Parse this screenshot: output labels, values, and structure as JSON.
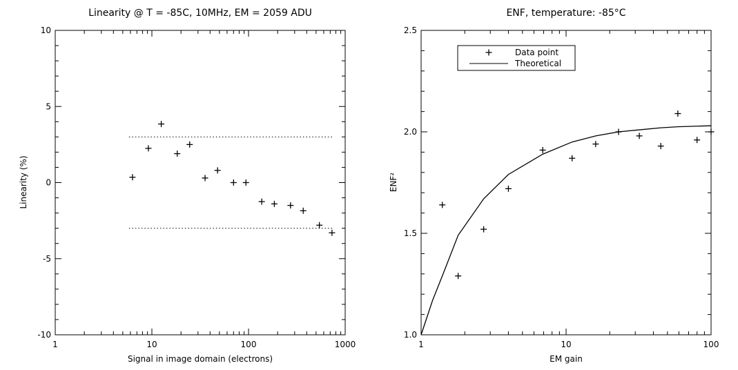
{
  "chart_data": [
    {
      "type": "scatter",
      "title": "Linearity @ T = -85C, 10MHz, EM = 2059 ADU",
      "xlabel": "Signal in image domain (electrons)",
      "ylabel": "Linearity (%)",
      "xscale": "log",
      "xlim": [
        1,
        1000
      ],
      "ylim": [
        -10,
        10
      ],
      "x_ticks": [
        1,
        10,
        100,
        1000
      ],
      "x_tick_labels": [
        "1",
        "10",
        "100",
        "1000"
      ],
      "y_ticks": [
        -10,
        -5,
        0,
        5,
        10
      ],
      "y_tick_labels": [
        "-10",
        "-5",
        "0",
        "5",
        "10"
      ],
      "reference_lines": [
        {
          "y": 3,
          "x_range": [
            5.8,
            760
          ],
          "style": "dotted"
        },
        {
          "y": -3,
          "x_range": [
            5.8,
            760
          ],
          "style": "dotted"
        }
      ],
      "series": [
        {
          "marker": "plus",
          "x": [
            6.3,
            9.2,
            12.5,
            18.3,
            24.6,
            35.5,
            47.8,
            70,
            94,
            137,
            185,
            272,
            368,
            541,
            730
          ],
          "y": [
            0.35,
            2.25,
            3.85,
            1.9,
            2.5,
            0.3,
            0.8,
            0.0,
            0.0,
            -1.25,
            -1.4,
            -1.5,
            -1.85,
            -2.8,
            -3.3
          ]
        }
      ],
      "grid": false,
      "legend": "none"
    },
    {
      "type": "line",
      "title": "ENF, temperature: -85°C",
      "xlabel": "EM gain",
      "ylabel": "ENF²",
      "xscale": "log",
      "xlim": [
        1,
        100
      ],
      "ylim": [
        1.0,
        2.5
      ],
      "x_ticks": [
        1,
        10,
        100
      ],
      "x_tick_labels": [
        "1",
        "10",
        "100"
      ],
      "y_ticks": [
        1.0,
        1.5,
        2.0,
        2.5
      ],
      "y_tick_labels": [
        "1.0",
        "1.5",
        "2.0",
        "2.5"
      ],
      "legend_placement": "top-left",
      "series": [
        {
          "name": "Data point",
          "marker": "plus",
          "x": [
            1.4,
            1.8,
            2.7,
            4.0,
            6.9,
            11,
            16,
            23,
            32,
            45,
            59,
            80,
            100
          ],
          "y": [
            1.64,
            1.29,
            1.52,
            1.72,
            1.91,
            1.87,
            1.94,
            2.0,
            1.98,
            1.93,
            2.09,
            1.96,
            2.0
          ]
        },
        {
          "name": "Theoretical",
          "line": "solid",
          "x": [
            1.0,
            1.2,
            1.4,
            1.8,
            2.7,
            4.0,
            6.9,
            11,
            16,
            23,
            32,
            45,
            59,
            80,
            100
          ],
          "y": [
            1.0,
            1.17,
            1.29,
            1.49,
            1.67,
            1.79,
            1.89,
            1.95,
            1.98,
            2.0,
            2.01,
            2.02,
            2.025,
            2.028,
            2.03
          ]
        }
      ],
      "grid": false
    }
  ]
}
